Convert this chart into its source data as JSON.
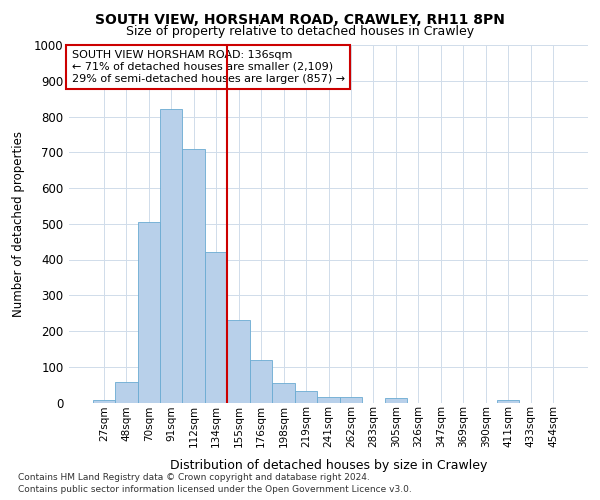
{
  "title": "SOUTH VIEW, HORSHAM ROAD, CRAWLEY, RH11 8PN",
  "subtitle": "Size of property relative to detached houses in Crawley",
  "xlabel": "Distribution of detached houses by size in Crawley",
  "ylabel": "Number of detached properties",
  "bar_labels": [
    "27sqm",
    "48sqm",
    "70sqm",
    "91sqm",
    "112sqm",
    "134sqm",
    "155sqm",
    "176sqm",
    "198sqm",
    "219sqm",
    "241sqm",
    "262sqm",
    "283sqm",
    "305sqm",
    "326sqm",
    "347sqm",
    "369sqm",
    "390sqm",
    "411sqm",
    "433sqm",
    "454sqm"
  ],
  "bar_values": [
    8,
    57,
    505,
    820,
    710,
    420,
    230,
    118,
    55,
    32,
    15,
    15,
    0,
    12,
    0,
    0,
    0,
    0,
    8,
    0,
    0
  ],
  "bar_color": "#b8d0ea",
  "bar_edge_color": "#6aabd2",
  "vline_x": 5.5,
  "vline_color": "#cc0000",
  "ylim": [
    0,
    1000
  ],
  "yticks": [
    0,
    100,
    200,
    300,
    400,
    500,
    600,
    700,
    800,
    900,
    1000
  ],
  "annotation_title": "SOUTH VIEW HORSHAM ROAD: 136sqm",
  "annotation_line1": "← 71% of detached houses are smaller (2,109)",
  "annotation_line2": "29% of semi-detached houses are larger (857) →",
  "footer1": "Contains HM Land Registry data © Crown copyright and database right 2024.",
  "footer2": "Contains public sector information licensed under the Open Government Licence v3.0.",
  "bg_color": "#ffffff",
  "plot_bg_color": "#ffffff",
  "grid_color": "#d0dcea"
}
